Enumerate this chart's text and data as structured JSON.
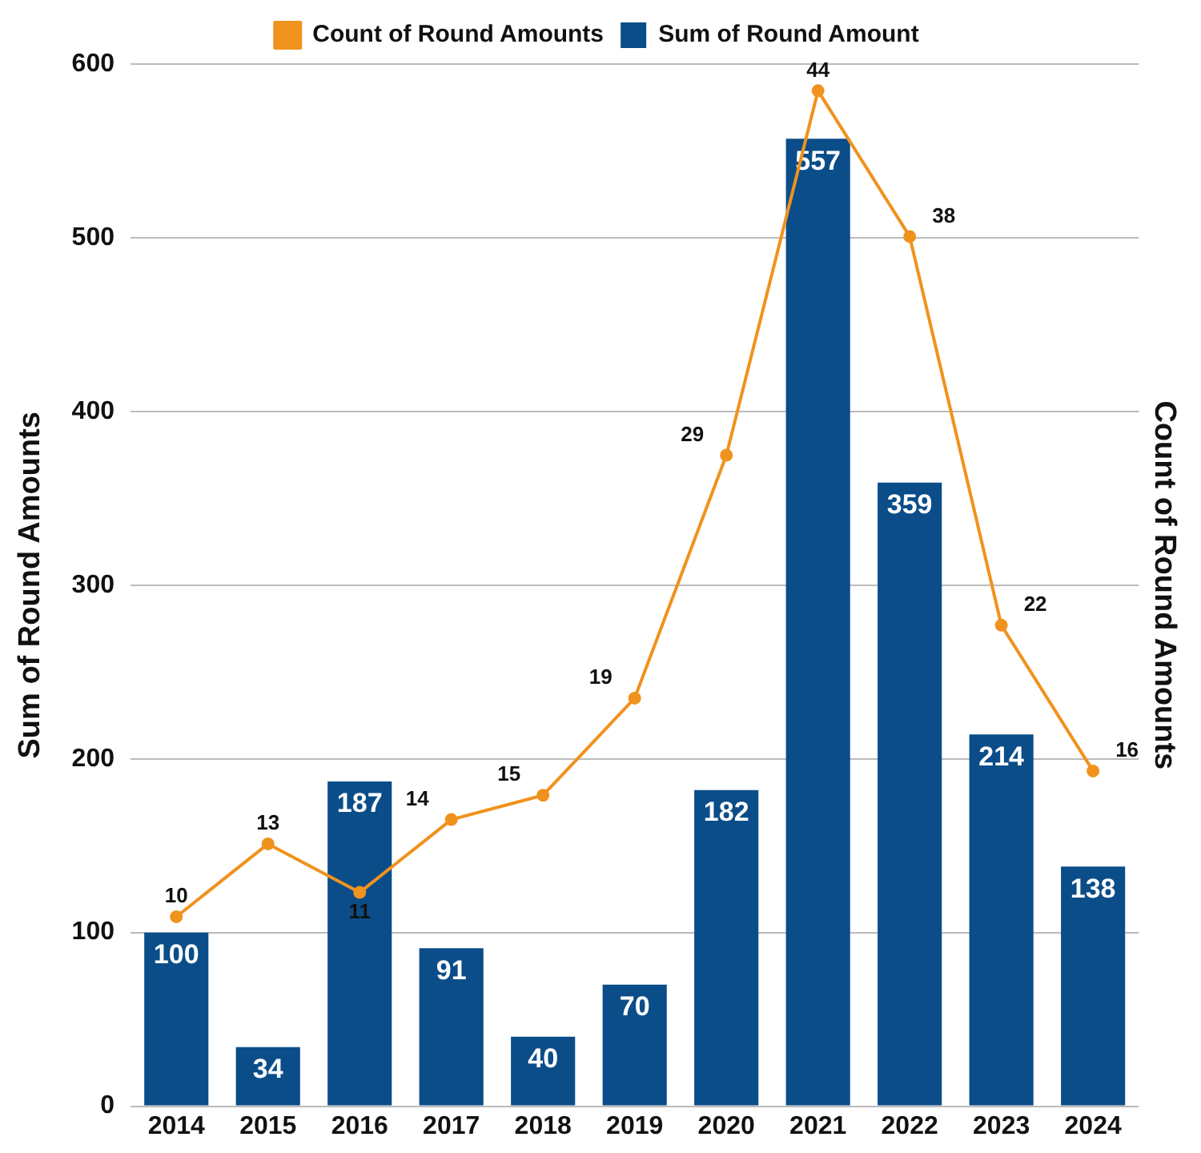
{
  "chart_data": {
    "type": "bar",
    "categories": [
      "2014",
      "2015",
      "2016",
      "2017",
      "2018",
      "2019",
      "2020",
      "2021",
      "2022",
      "2023",
      "2024"
    ],
    "series": [
      {
        "name": "Count of Round Amounts",
        "type": "line",
        "axis": "y2",
        "color": "#f0921e",
        "values": [
          10,
          13,
          11,
          14,
          15,
          19,
          29,
          44,
          38,
          22,
          16
        ]
      },
      {
        "name": "Sum of Round Amount",
        "color": "#0b4d89",
        "values": [
          100,
          34,
          187,
          91,
          40,
          70,
          182,
          557,
          359,
          214,
          138
        ]
      }
    ],
    "ylabel": "Sum of Round Amounts",
    "y2label": "Count of Round Amounts",
    "ylim": [
      0,
      600
    ],
    "yticks": [
      0,
      100,
      200,
      300,
      400,
      500,
      600
    ],
    "y2lim": [
      2.2,
      45.1
    ],
    "grid": "y",
    "legend": "top",
    "marker": "circle",
    "data_labels": true
  }
}
